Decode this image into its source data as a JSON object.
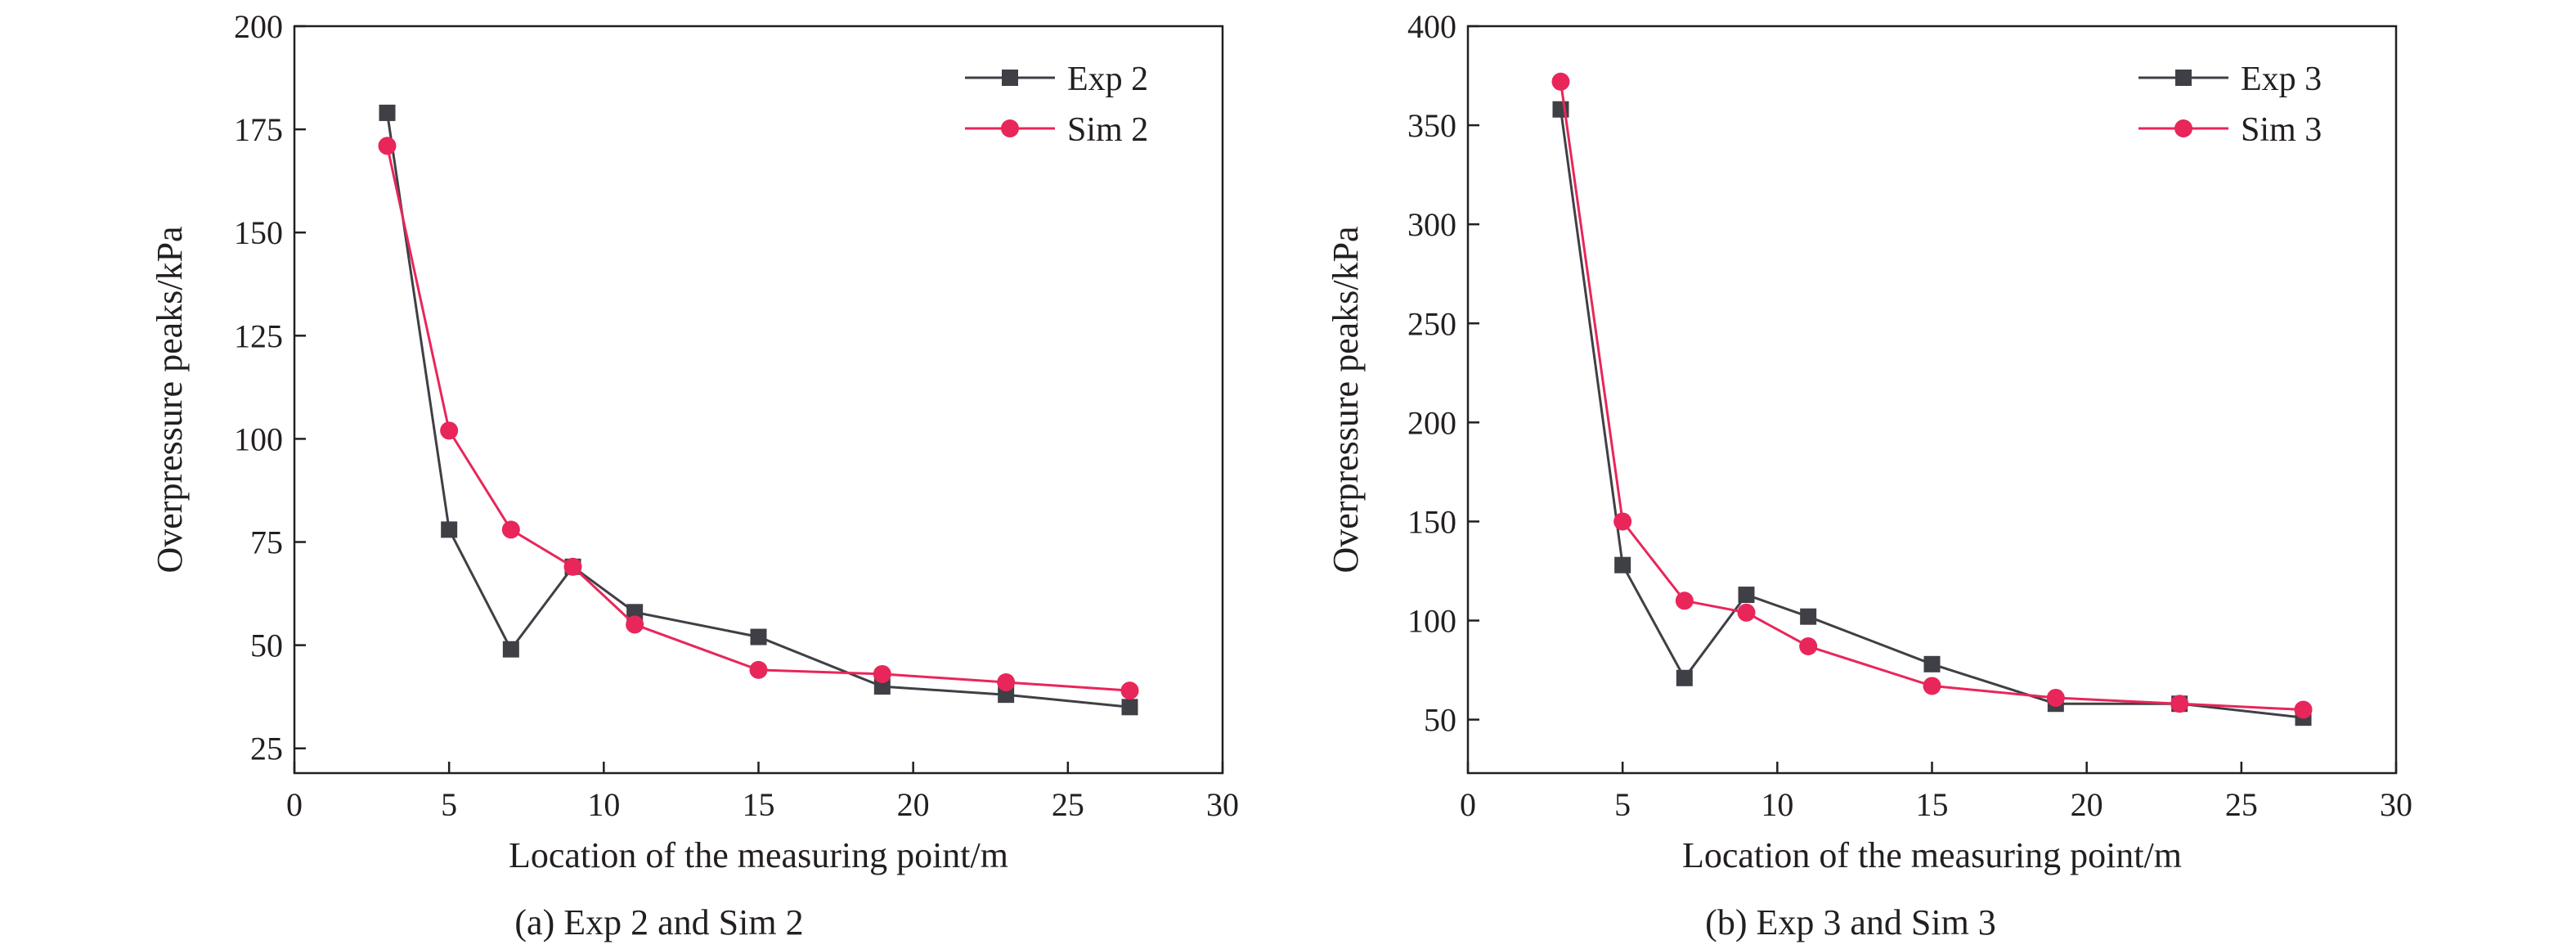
{
  "colors": {
    "exp": "#3f3f46",
    "sim": "#e8265a",
    "axis": "#231f20"
  },
  "chart_data": [
    {
      "type": "line",
      "caption": "(a) Exp 2 and Sim 2",
      "xlabel": "Location of the measuring point/m",
      "ylabel": "Overpressure peaks/kPa",
      "xlim": [
        0,
        30
      ],
      "ylim": [
        19,
        200
      ],
      "xticks": [
        0,
        5,
        10,
        15,
        20,
        25,
        30
      ],
      "yticks": [
        25,
        50,
        75,
        100,
        125,
        150,
        175,
        200
      ],
      "grid": false,
      "legend_position": "top-right",
      "series": [
        {
          "name": "Exp 2",
          "marker": "square",
          "color_key": "exp",
          "x": [
            3,
            5,
            7,
            9,
            11,
            15,
            19,
            23,
            27
          ],
          "y": [
            179,
            78,
            49,
            69,
            58,
            52,
            40,
            38,
            35
          ]
        },
        {
          "name": "Sim 2",
          "marker": "circle",
          "color_key": "sim",
          "x": [
            3,
            5,
            7,
            9,
            11,
            15,
            19,
            23,
            27
          ],
          "y": [
            171,
            102,
            78,
            69,
            55,
            44,
            43,
            41,
            39
          ]
        }
      ]
    },
    {
      "type": "line",
      "caption": "(b) Exp 3 and Sim 3",
      "xlabel": "Location of the measuring point/m",
      "ylabel": "Overpressure peaks/kPa",
      "xlim": [
        0,
        30
      ],
      "ylim": [
        23,
        400
      ],
      "xticks": [
        0,
        5,
        10,
        15,
        20,
        25,
        30
      ],
      "yticks": [
        50,
        100,
        150,
        200,
        250,
        300,
        350,
        400
      ],
      "grid": false,
      "legend_position": "top-right",
      "series": [
        {
          "name": "Exp 3",
          "marker": "square",
          "color_key": "exp",
          "x": [
            3,
            5,
            7,
            9,
            11,
            15,
            19,
            23,
            27
          ],
          "y": [
            358,
            128,
            71,
            113,
            102,
            78,
            58,
            58,
            51
          ]
        },
        {
          "name": "Sim 3",
          "marker": "circle",
          "color_key": "sim",
          "x": [
            3,
            5,
            7,
            9,
            11,
            15,
            19,
            23,
            27
          ],
          "y": [
            372,
            150,
            110,
            104,
            87,
            67,
            61,
            58,
            55
          ]
        }
      ]
    }
  ]
}
